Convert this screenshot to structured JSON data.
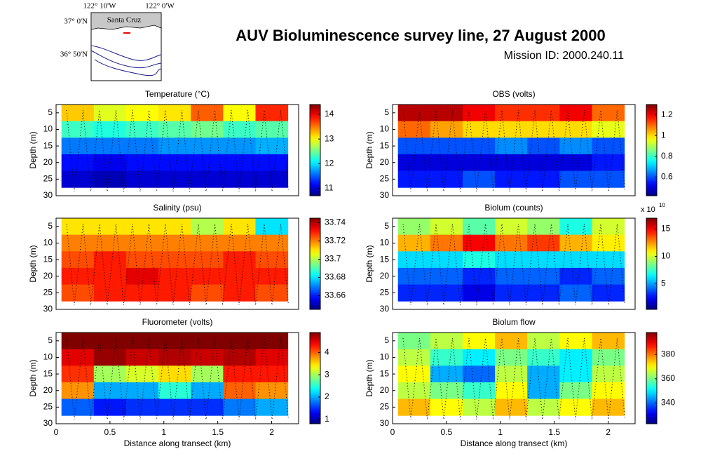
{
  "header": {
    "title": "AUV Bioluminescence survey line, 27 August 2000",
    "subtitle": "Mission ID: 2000.240.11"
  },
  "map": {
    "xticks": [
      "122° 10'W",
      "122° 0'W"
    ],
    "yticks": [
      "37° 0'N",
      "36° 50'N"
    ],
    "place": "Santa Cruz"
  },
  "chart_data": [
    {
      "type": "heatmap",
      "title": "Temperature (°C)",
      "ylabel": "Depth (m)",
      "colormap": "jet",
      "y_reversed": true,
      "x": [
        0.2,
        0.5,
        0.8,
        1.1,
        1.4,
        1.7,
        2.0
      ],
      "y": [
        5,
        10,
        15,
        20,
        25
      ],
      "z": [
        [
          13.2,
          12.9,
          13.0,
          13.1,
          13.6,
          13.0,
          13.8
        ],
        [
          12.3,
          12.2,
          12.3,
          12.4,
          12.5,
          12.3,
          12.4
        ],
        [
          11.6,
          11.6,
          11.6,
          11.7,
          11.7,
          11.7,
          11.8
        ],
        [
          11.2,
          11.1,
          11.2,
          11.2,
          11.2,
          11.2,
          11.2
        ],
        [
          11.0,
          10.9,
          11.0,
          11.0,
          11.0,
          11.0,
          11.0
        ]
      ],
      "xlim": [
        0,
        2.25
      ],
      "ylim": [
        2.5,
        30
      ],
      "yticks": [
        5,
        10,
        15,
        20,
        25,
        30
      ],
      "clim": [
        10.7,
        14.4
      ],
      "cticks": [
        11,
        12,
        13,
        14
      ]
    },
    {
      "type": "heatmap",
      "title": "OBS (volts)",
      "ylabel": "Depth (m)",
      "colormap": "jet",
      "y_reversed": true,
      "x": [
        0.2,
        0.5,
        0.8,
        1.1,
        1.4,
        1.7,
        2.0
      ],
      "y": [
        5,
        10,
        15,
        20,
        25
      ],
      "z": [
        [
          1.25,
          1.25,
          1.2,
          1.15,
          1.15,
          1.2,
          1.1
        ],
        [
          1.1,
          1.05,
          1.0,
          1.0,
          1.0,
          1.0,
          0.95
        ],
        [
          0.6,
          0.6,
          0.6,
          0.65,
          0.6,
          0.65,
          0.6
        ],
        [
          0.5,
          0.5,
          0.5,
          0.5,
          0.5,
          0.5,
          0.55
        ],
        [
          0.55,
          0.55,
          0.6,
          0.55,
          0.55,
          0.6,
          0.6
        ]
      ],
      "xlim": [
        0,
        2.25
      ],
      "ylim": [
        2.5,
        30
      ],
      "yticks": [
        5,
        10,
        15,
        20,
        25,
        30
      ],
      "clim": [
        0.42,
        1.3
      ],
      "cticks": [
        0.6,
        0.8,
        1,
        1.2
      ]
    },
    {
      "type": "heatmap",
      "title": "Salinity (psu)",
      "ylabel": "Depth (m)",
      "colormap": "jet",
      "y_reversed": true,
      "x": [
        0.2,
        0.5,
        0.8,
        1.1,
        1.4,
        1.7,
        2.0
      ],
      "y": [
        5,
        10,
        15,
        20,
        25
      ],
      "z": [
        [
          33.71,
          33.71,
          33.71,
          33.71,
          33.7,
          33.71,
          33.68
        ],
        [
          33.72,
          33.72,
          33.72,
          33.72,
          33.72,
          33.72,
          33.72
        ],
        [
          33.725,
          33.73,
          33.725,
          33.725,
          33.725,
          33.73,
          33.725
        ],
        [
          33.73,
          33.73,
          33.735,
          33.73,
          33.73,
          33.73,
          33.73
        ],
        [
          33.725,
          33.73,
          33.73,
          33.73,
          33.725,
          33.73,
          33.725
        ]
      ],
      "xlim": [
        0,
        2.25
      ],
      "ylim": [
        2.5,
        30
      ],
      "yticks": [
        5,
        10,
        15,
        20,
        25,
        30
      ],
      "clim": [
        33.645,
        33.745
      ],
      "cticks": [
        33.66,
        33.68,
        33.7,
        33.72,
        33.74
      ]
    },
    {
      "type": "heatmap",
      "title": "Biolum (counts)",
      "ylabel": "Depth (m)",
      "colormap": "jet",
      "y_reversed": true,
      "x": [
        0.2,
        0.5,
        0.8,
        1.1,
        1.4,
        1.7,
        2.0
      ],
      "y": [
        5,
        10,
        15,
        20,
        25
      ],
      "z": [
        [
          9,
          10,
          8,
          10,
          9,
          7,
          10
        ],
        [
          12,
          13,
          15,
          13,
          14,
          12,
          11
        ],
        [
          6,
          6,
          7,
          6,
          6,
          6,
          6
        ],
        [
          4,
          4,
          3,
          4,
          4,
          3,
          4
        ],
        [
          3,
          3,
          2,
          3,
          3,
          4,
          3
        ]
      ],
      "xlim": [
        0,
        2.25
      ],
      "ylim": [
        2.5,
        30
      ],
      "yticks": [
        5,
        10,
        15,
        20,
        25,
        30
      ],
      "clim": [
        0.3,
        17
      ],
      "cticks": [
        5,
        10,
        15
      ],
      "cbar_multiplier": {
        "text": "x 10",
        "exponent": "10"
      }
    },
    {
      "type": "heatmap",
      "title": "Fluorometer (volts)",
      "ylabel": "Depth (m)",
      "xlabel": "Distance along transect (km)",
      "colormap": "jet",
      "y_reversed": true,
      "x": [
        0.2,
        0.5,
        0.8,
        1.1,
        1.4,
        1.7,
        2.0
      ],
      "y": [
        5,
        10,
        15,
        20,
        25
      ],
      "z": [
        [
          4.9,
          4.9,
          4.9,
          4.9,
          4.9,
          4.9,
          4.9
        ],
        [
          4.5,
          4.8,
          4.6,
          4.7,
          4.6,
          4.7,
          4.5
        ],
        [
          4.2,
          3.0,
          3.2,
          3.5,
          3.0,
          4.3,
          4.3
        ],
        [
          3.8,
          2.0,
          2.0,
          2.5,
          2.0,
          4.0,
          3.8
        ],
        [
          1.7,
          1.4,
          1.5,
          1.5,
          1.5,
          1.8,
          2.0
        ]
      ],
      "xlim": [
        0,
        2.25
      ],
      "ylim": [
        2.5,
        30
      ],
      "xticks": [
        0,
        0.5,
        1,
        1.5,
        2
      ],
      "yticks": [
        5,
        10,
        15,
        20,
        25,
        30
      ],
      "clim": [
        0.8,
        4.9
      ],
      "cticks": [
        1,
        2,
        3,
        4
      ]
    },
    {
      "type": "heatmap",
      "title": "Biolum flow",
      "ylabel": "Depth (m)",
      "xlabel": "Distance along transect (km)",
      "colormap": "jet",
      "y_reversed": true,
      "x": [
        0.2,
        0.5,
        0.8,
        1.1,
        1.4,
        1.7,
        2.0
      ],
      "y": [
        5,
        10,
        15,
        20,
        25
      ],
      "z": [
        [
          360,
          365,
          370,
          375,
          365,
          370,
          375
        ],
        [
          365,
          355,
          350,
          360,
          355,
          350,
          360
        ],
        [
          370,
          345,
          340,
          365,
          345,
          350,
          365
        ],
        [
          365,
          360,
          355,
          370,
          345,
          360,
          370
        ],
        [
          375,
          370,
          365,
          375,
          365,
          370,
          375
        ]
      ],
      "xlim": [
        0,
        2.25
      ],
      "ylim": [
        2.5,
        30
      ],
      "xticks": [
        0,
        0.5,
        1,
        1.5,
        2
      ],
      "yticks": [
        5,
        10,
        15,
        20,
        25,
        30
      ],
      "clim": [
        323,
        398
      ],
      "cticks": [
        340,
        360,
        380
      ]
    }
  ]
}
